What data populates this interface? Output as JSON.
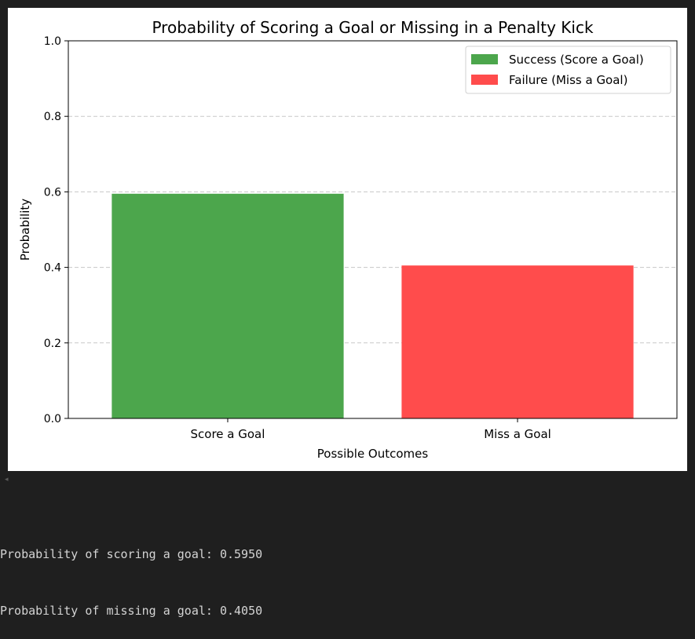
{
  "chart_data": {
    "type": "bar",
    "title": "Probability of Scoring a Goal or Missing in a Penalty Kick",
    "xlabel": "Possible Outcomes",
    "ylabel": "Probability",
    "categories": [
      "Score a Goal",
      "Miss a Goal"
    ],
    "values": [
      0.595,
      0.405
    ],
    "colors": [
      "#4ca64c",
      "#ff4c4c"
    ],
    "ylim": [
      0,
      1.0
    ],
    "yticks": [
      "0.0",
      "0.2",
      "0.4",
      "0.6",
      "0.8",
      "1.0"
    ],
    "grid": "y-dashed",
    "legend": {
      "placement": "top-right",
      "entries": [
        {
          "label": "Success (Score a Goal)",
          "color": "#4ca64c"
        },
        {
          "label": "Failure (Miss a Goal)",
          "color": "#ff4c4c"
        }
      ]
    }
  },
  "output": {
    "collapse_glyph": "◂",
    "lines": [
      "Probability of scoring a goal: 0.5950",
      "Probability of missing a goal: 0.4050"
    ]
  }
}
